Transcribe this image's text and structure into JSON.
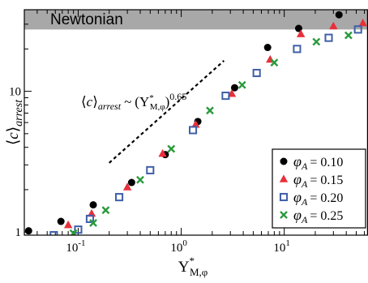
{
  "chart_data": {
    "type": "scatter",
    "x_scale": "log",
    "y_scale": "log",
    "xlim": [
      0.03,
      65
    ],
    "ylim": [
      0.95,
      38
    ],
    "ytick_labels": [
      {
        "value": 1,
        "label": "1"
      },
      {
        "value": 10,
        "label": "10"
      }
    ],
    "xtick_labels": [
      {
        "value": 0.1,
        "base": "10",
        "exp": "-1"
      },
      {
        "value": 1,
        "base": "10",
        "exp": "0"
      },
      {
        "value": 10,
        "base": "10",
        "exp": "1"
      }
    ],
    "xlabel": {
      "main": "Y",
      "sup": "*",
      "sub": "M,φ"
    },
    "ylabel": {
      "open": "⟨",
      "var": "c",
      "close": "⟩",
      "sub": "arrest"
    },
    "band": {
      "label": "Newtonian",
      "y_from": 27.5,
      "y_to": 38,
      "color": "#a8a8a8"
    },
    "annotation": {
      "lhs_var": "c",
      "lhs_sub": "arrest",
      "sim": "~",
      "rhs_main": "Y",
      "rhs_sup": "*",
      "rhs_sub": "M,φ",
      "exponent": "0.65",
      "line_x": [
        0.2,
        2.6
      ],
      "line_y": [
        3.1,
        16.5
      ]
    },
    "legend_position": "lower-right",
    "series": [
      {
        "name_var": "φ",
        "name_sub": "A",
        "name_value": "= 0.10",
        "marker": "circle",
        "color": "#000000",
        "x": [
          0.033,
          0.068,
          0.14,
          0.33,
          0.7,
          1.45,
          3.3,
          6.9,
          13.8,
          34
        ],
        "y": [
          1.02,
          1.19,
          1.56,
          2.25,
          3.55,
          6.1,
          10.6,
          20.5,
          28,
          35
        ]
      },
      {
        "name_var": "φ",
        "name_sub": "A",
        "name_value": "= 0.15",
        "marker": "triangle",
        "color": "#e8303a",
        "x": [
          0.08,
          0.135,
          0.3,
          0.66,
          1.38,
          3.1,
          7.3,
          14.5,
          30,
          58
        ],
        "y": [
          1.12,
          1.35,
          2.08,
          3.6,
          5.8,
          9.6,
          16.8,
          25.5,
          29,
          30.5
        ]
      },
      {
        "name_var": "φ",
        "name_sub": "A",
        "name_value": "= 0.20",
        "marker": "square",
        "color": "#3f5fa8",
        "x": [
          0.058,
          0.1,
          0.13,
          0.25,
          0.5,
          1.3,
          2.7,
          5.4,
          13.3,
          27,
          52
        ],
        "y": [
          0.95,
          1.04,
          1.24,
          1.77,
          2.75,
          5.3,
          9.3,
          13.5,
          20,
          24,
          27.5
        ]
      },
      {
        "name_var": "φ",
        "name_sub": "A",
        "name_value": "= 0.25",
        "marker": "x",
        "color": "#2a9a3c",
        "x": [
          0.09,
          0.14,
          0.185,
          0.4,
          0.8,
          1.9,
          3.9,
          8,
          20.5,
          42
        ],
        "y": [
          0.98,
          1.16,
          1.43,
          2.35,
          3.9,
          7.3,
          11.1,
          16,
          22.5,
          25
        ]
      }
    ]
  }
}
